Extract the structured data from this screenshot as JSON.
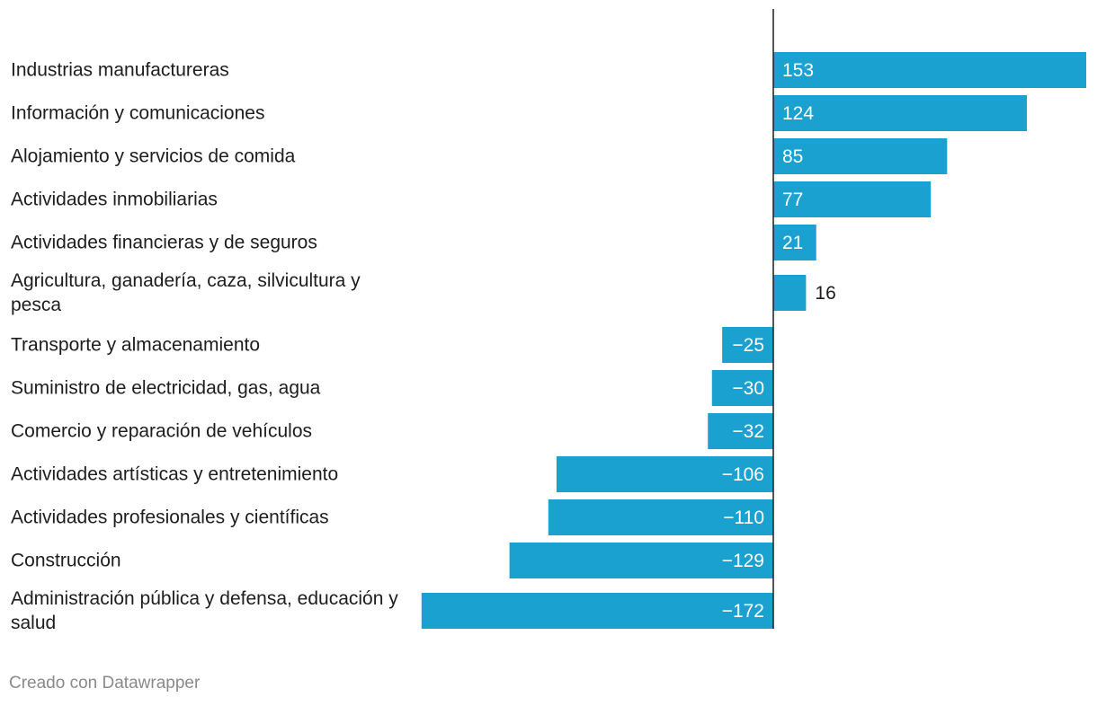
{
  "chart_data": {
    "type": "bar",
    "orientation": "horizontal",
    "title": "",
    "xlabel": "",
    "ylabel": "",
    "categories": [
      "Industrias manufactureras",
      "Información y comunicaciones",
      "Alojamiento y servicios de comida",
      "Actividades inmobiliarias",
      "Actividades financieras y de seguros",
      "Agricultura, ganadería, caza, silvicultura y pesca",
      "Transporte y almacenamiento",
      "Suministro de electricidad, gas, agua",
      "Comercio y reparación de vehículos",
      "Actividades artísticas y entretenimiento",
      "Actividades profesionales y científicas",
      "Construcción",
      "Administración pública y defensa, educación y salud"
    ],
    "values": [
      153,
      124,
      85,
      77,
      21,
      16,
      -25,
      -30,
      -32,
      -106,
      -110,
      -129,
      -172
    ],
    "value_labels": [
      "153",
      "124",
      "85",
      "77",
      "21",
      "16",
      "−25",
      "−30",
      "−32",
      "−106",
      "−110",
      "−129",
      "−172"
    ],
    "xlim": [
      -172,
      153
    ],
    "grid": false,
    "bar_color": "#1aa1d0"
  },
  "footer": {
    "credit": "Creado con Datawrapper"
  }
}
